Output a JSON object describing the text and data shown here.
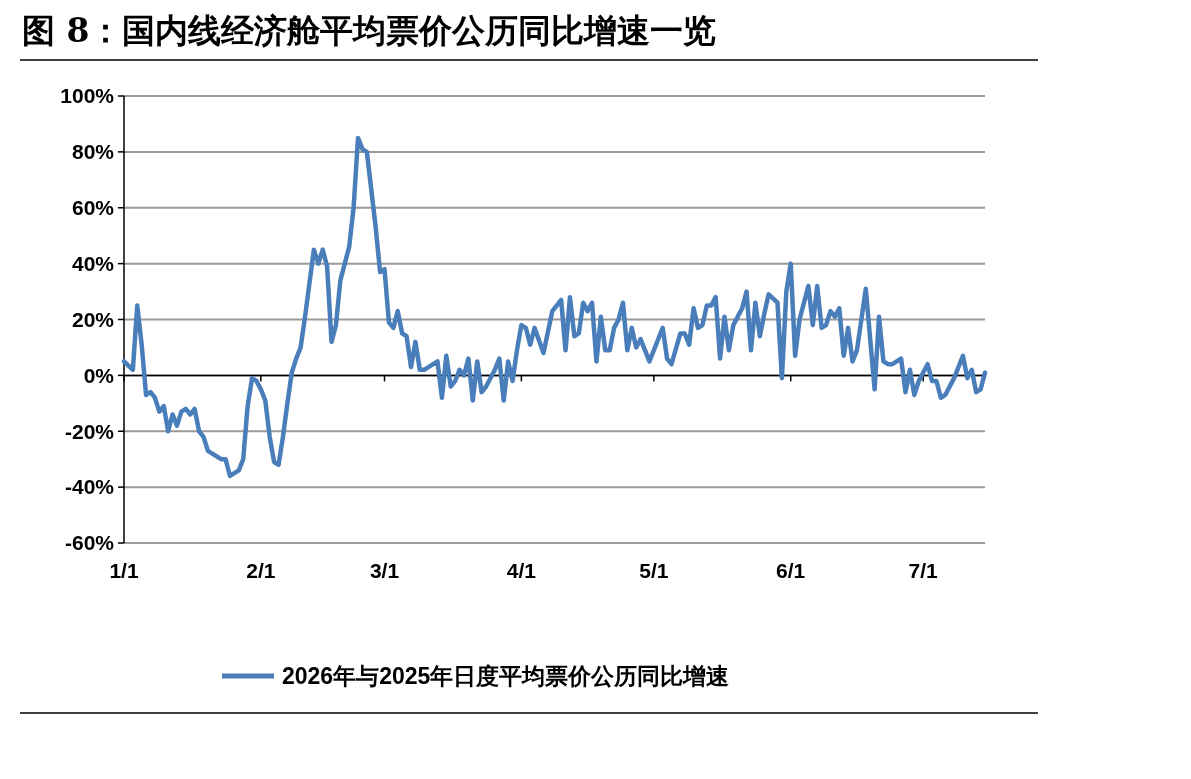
{
  "chart_data": {
    "type": "line",
    "title": "图 8：国内线经济舱平均票价公历同比增速一览",
    "x": [
      "--01-01",
      "--01-03",
      "--01-04",
      "--01-05",
      "--01-06",
      "--01-07",
      "--01-08",
      "--01-09",
      "--01-10",
      "--01-11",
      "--01-12",
      "--01-13",
      "--01-14",
      "--01-15",
      "--01-16",
      "--01-17",
      "--01-18",
      "--01-19",
      "--01-20",
      "--01-21",
      "--01-23",
      "--01-24",
      "--01-25",
      "--01-26",
      "--01-27",
      "--01-28",
      "--01-29",
      "--01-30",
      "--01-31",
      "--02-01",
      "--02-02",
      "--02-03",
      "--02-04",
      "--02-05",
      "--02-06",
      "--02-07",
      "--02-08",
      "--02-09",
      "--02-10",
      "--02-11",
      "--02-13",
      "--02-14",
      "--02-15",
      "--02-16",
      "--02-17",
      "--02-18",
      "--02-19",
      "--02-21",
      "--02-22",
      "--02-23",
      "--02-24",
      "--02-25",
      "--02-27",
      "--02-28",
      "--03-01",
      "--03-02",
      "--03-03",
      "--03-04",
      "--03-05",
      "--03-06",
      "--03-07",
      "--03-08",
      "--03-09",
      "--03-10",
      "--03-12",
      "--03-13",
      "--03-14",
      "--03-15",
      "--03-16",
      "--03-17",
      "--03-18",
      "--03-19",
      "--03-20",
      "--03-21",
      "--03-22",
      "--03-23",
      "--03-24",
      "--03-26",
      "--03-27",
      "--03-28",
      "--03-29",
      "--03-30",
      "--03-31",
      "--04-01",
      "--04-02",
      "--04-03",
      "--04-04",
      "--04-06",
      "--04-08",
      "--04-09",
      "--04-10",
      "--04-11",
      "--04-12",
      "--04-13",
      "--04-14",
      "--04-15",
      "--04-16",
      "--04-17",
      "--04-18",
      "--04-19",
      "--04-20",
      "--04-21",
      "--04-22",
      "--04-23",
      "--04-24",
      "--04-25",
      "--04-26",
      "--04-27",
      "--04-28",
      "--04-30",
      "--05-01",
      "--05-03",
      "--05-04",
      "--05-05",
      "--05-07",
      "--05-08",
      "--05-09",
      "--05-10",
      "--05-11",
      "--05-12",
      "--05-13",
      "--05-14",
      "--05-15",
      "--05-16",
      "--05-17",
      "--05-18",
      "--05-19",
      "--05-21",
      "--05-22",
      "--05-23",
      "--05-24",
      "--05-25",
      "--05-26",
      "--05-27",
      "--05-29",
      "--05-30",
      "--05-31",
      "--06-01",
      "--06-02",
      "--06-03",
      "--06-05",
      "--06-06",
      "--06-07",
      "--06-08",
      "--06-09",
      "--06-10",
      "--06-11",
      "--06-12",
      "--06-13",
      "--06-14",
      "--06-15",
      "--06-16",
      "--06-18",
      "--06-20",
      "--06-21",
      "--06-22",
      "--06-23",
      "--06-24",
      "--06-26",
      "--06-27",
      "--06-28",
      "--06-29",
      "--06-30",
      "--07-02",
      "--07-03",
      "--07-04",
      "--07-05",
      "--07-06",
      "--07-08",
      "--07-10",
      "--07-11",
      "--07-12",
      "--07-13",
      "--07-14",
      "--07-15"
    ],
    "series": [
      {
        "name": "2026年与2025年日度平均票价公历同比增速",
        "color": "#4a7ebb",
        "values": [
          5,
          2,
          25,
          11,
          -7,
          -6,
          -8,
          -13,
          -11,
          -20,
          -14,
          -18,
          -13,
          -12,
          -14,
          -12,
          -20,
          -22,
          -27,
          -28,
          -30,
          -30,
          -36,
          -35,
          -34,
          -30,
          -11,
          -1,
          -2,
          -5,
          -9,
          -22,
          -31,
          -32,
          -22,
          -10,
          1,
          6,
          10,
          21,
          45,
          40,
          45,
          39,
          12,
          18,
          34,
          46,
          60,
          85,
          81,
          80,
          53,
          37,
          38,
          19,
          17,
          23,
          15,
          14,
          3,
          12,
          2,
          2,
          4,
          5,
          -8,
          7,
          -4,
          -2,
          2,
          0,
          6,
          -9,
          5,
          -6,
          -4,
          2,
          6,
          -9,
          5,
          -2,
          9,
          18,
          17,
          11,
          17,
          8,
          23,
          25,
          27,
          9,
          28,
          14,
          15,
          26,
          23,
          26,
          5,
          21,
          9,
          9,
          17,
          20,
          26,
          9,
          17,
          10,
          13,
          5,
          9,
          17,
          6,
          4,
          15,
          15,
          11,
          24,
          17,
          18,
          25,
          25,
          28,
          6,
          21,
          9,
          18,
          24,
          30,
          9,
          26,
          14,
          22,
          29,
          26,
          -1,
          30,
          40,
          7,
          20,
          32,
          18,
          32,
          17,
          18,
          23,
          21,
          24,
          7,
          17,
          5,
          9,
          31,
          -5,
          21,
          5,
          4,
          4,
          6,
          -6,
          2,
          -7,
          -2,
          4,
          -2,
          -2,
          -8,
          -7,
          -1,
          7,
          -1,
          2,
          -6,
          -5,
          1
        ]
      }
    ],
    "xlim": [
      "--01-01",
      "--07-15"
    ],
    "xticks": [
      {
        "value": "--01-01",
        "label": "1/1"
      },
      {
        "value": "--02-01",
        "label": "2/1"
      },
      {
        "value": "--03-01",
        "label": "3/1"
      },
      {
        "value": "--04-01",
        "label": "4/1"
      },
      {
        "value": "--05-01",
        "label": "5/1"
      },
      {
        "value": "--06-01",
        "label": "6/1"
      },
      {
        "value": "--07-01",
        "label": "7/1"
      }
    ],
    "ylim": [
      -60,
      100
    ],
    "yticks": [
      {
        "value": -60,
        "label": "-60%"
      },
      {
        "value": -40,
        "label": "-40%"
      },
      {
        "value": -20,
        "label": "-20%"
      },
      {
        "value": 0,
        "label": "0%"
      },
      {
        "value": 20,
        "label": "20%"
      },
      {
        "value": 40,
        "label": "40%"
      },
      {
        "value": 60,
        "label": "60%"
      },
      {
        "value": 80,
        "label": "80%"
      },
      {
        "value": 100,
        "label": "100%"
      }
    ],
    "grid": "y",
    "legend": "bottom",
    "marker": "none",
    "line_style": "solid"
  }
}
